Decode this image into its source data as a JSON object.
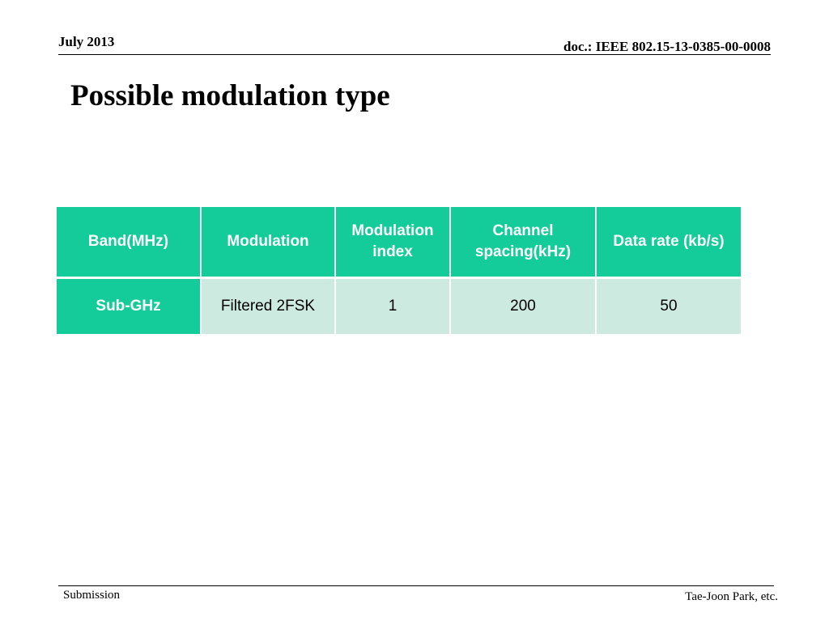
{
  "header": {
    "date": "July 2013",
    "doc_id": "doc.: IEEE 802.15-13-0385-00-0008"
  },
  "slide": {
    "title": "Possible modulation type"
  },
  "table": {
    "headers": [
      "Band(MHz)",
      "Modulation",
      "Modulation index",
      "Channel spacing(kHz)",
      "Data rate (kb/s)"
    ],
    "rows": [
      [
        "Sub-GHz",
        "Filtered 2FSK",
        "1",
        "200",
        "50"
      ]
    ]
  },
  "footer": {
    "left": "Submission",
    "right": "Tae-Joon Park, etc."
  },
  "colors": {
    "header_fill": "#14cc99",
    "cell_fill": "#cceadf"
  }
}
